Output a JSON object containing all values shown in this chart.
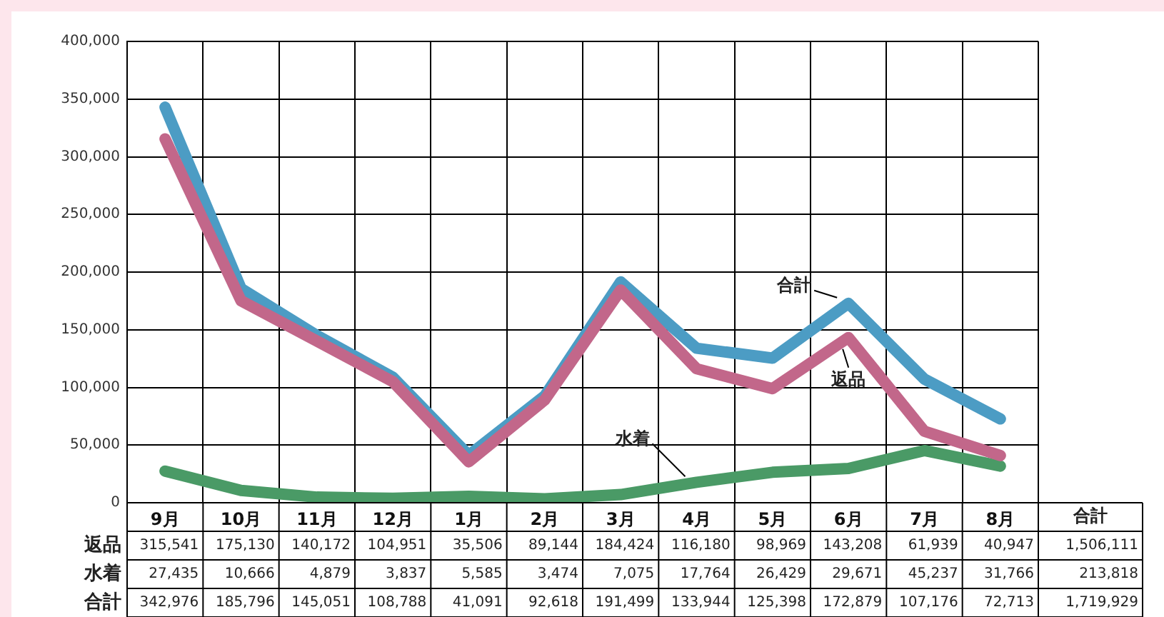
{
  "chart_data": {
    "type": "line",
    "categories": [
      "9月",
      "10月",
      "11月",
      "12月",
      "1月",
      "2月",
      "3月",
      "4月",
      "5月",
      "6月",
      "7月",
      "8月"
    ],
    "series": [
      {
        "name": "返品",
        "color": "#c2678a",
        "values": [
          315541,
          175130,
          140172,
          104951,
          35506,
          89144,
          184424,
          116180,
          98969,
          143208,
          61939,
          40947
        ],
        "value_labels": [
          "315,541",
          "175,130",
          "140,172",
          "104,951",
          "35,506",
          "89,144",
          "184,424",
          "116,180",
          "98,969",
          "143,208",
          "61,939",
          "40,947"
        ]
      },
      {
        "name": "水着",
        "color": "#4a9a66",
        "values": [
          27435,
          10666,
          4879,
          3837,
          5585,
          3474,
          7075,
          17764,
          26429,
          29671,
          45237,
          31766
        ],
        "value_labels": [
          "27,435",
          "10,666",
          "4,879",
          "3,837",
          "5,585",
          "3,474",
          "7,075",
          "17,764",
          "26,429",
          "29,671",
          "45,237",
          "31,766"
        ]
      },
      {
        "name": "合計",
        "color": "#4c9cc4",
        "values": [
          342976,
          185796,
          145051,
          108788,
          41091,
          92618,
          191499,
          133944,
          125398,
          172879,
          107176,
          72713
        ],
        "value_labels": [
          "342,976",
          "185,796",
          "145,051",
          "108,788",
          "41,091",
          "92,618",
          "191,499",
          "133,944",
          "125,398",
          "172,879",
          "107,176",
          "72,713"
        ]
      }
    ],
    "ylim": [
      0,
      400000
    ],
    "yticks": [
      0,
      {
        "value": 50000,
        "label": "50,000"
      },
      {
        "value": 100000,
        "label": "100,000"
      },
      {
        "value": 150000,
        "label": "150,000"
      },
      {
        "value": 200000,
        "label": "200,000"
      },
      {
        "value": 250000,
        "label": "250,000"
      },
      {
        "value": 300000,
        "label": "300,000"
      },
      {
        "value": 350000,
        "label": "350,000"
      },
      {
        "value": 400000,
        "label": "400,000"
      }
    ],
    "grid": true,
    "legend": false,
    "marker": "none",
    "line_style": "solid",
    "annotations": [
      "合計",
      "1,506,111",
      "213,818",
      "1,719,929"
    ]
  }
}
